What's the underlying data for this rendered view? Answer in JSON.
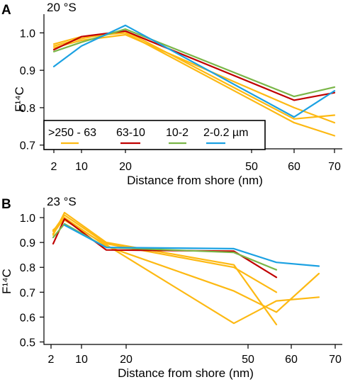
{
  "chart_data": [
    {
      "type": "line",
      "panel": "A",
      "title": "20 °S",
      "xlabel": "Distance from shore (nm)",
      "ylabel": "F¹⁴C",
      "xtick_labels": [
        "2",
        "10",
        "20",
        "50",
        "60",
        "70"
      ],
      "xtick_values": [
        2,
        10,
        20,
        50,
        60,
        70
      ],
      "ytick_labels": [
        "0.7",
        "0.8",
        "0.9",
        "1.0"
      ],
      "ytick_values": [
        0.7,
        0.8,
        0.9,
        1.0
      ],
      "xlim": [
        0,
        70
      ],
      "ylim": [
        0.69,
        1.05
      ],
      "legend": {
        "placement": "bottom-left",
        "entries": [
          {
            "label": ">250 - 63",
            "color": "#FDB913"
          },
          {
            "label": "63-10",
            "color": "#C00000"
          },
          {
            "label": "10-2",
            "color": "#7AB648"
          },
          {
            "label": "2-0.2 µm",
            "color": "#1BA1E2"
          }
        ]
      },
      "series": [
        {
          "size_class": ">250 - 63",
          "color": "#FDB913",
          "x": [
            2,
            10,
            20,
            60,
            70
          ],
          "y": [
            0.97,
            0.99,
            1.0,
            0.76,
            0.725
          ]
        },
        {
          "size_class": ">250 - 63",
          "color": "#FDB913",
          "x": [
            2,
            10,
            20,
            60,
            70
          ],
          "y": [
            0.965,
            0.985,
            1.005,
            0.77,
            0.78
          ]
        },
        {
          "size_class": ">250 - 63",
          "color": "#FDB913",
          "x": [
            2,
            10,
            20,
            60,
            70
          ],
          "y": [
            0.96,
            0.98,
            0.995,
            0.8,
            0.76
          ]
        },
        {
          "size_class": "63-10",
          "color": "#C00000",
          "x": [
            2,
            10,
            20,
            60,
            70
          ],
          "y": [
            0.955,
            0.99,
            1.005,
            0.82,
            0.84
          ]
        },
        {
          "size_class": "10-2",
          "color": "#7AB648",
          "x": [
            2,
            10,
            20,
            60,
            70
          ],
          "y": [
            0.95,
            0.975,
            1.01,
            0.83,
            0.855
          ]
        },
        {
          "size_class": "2-0.2 µm",
          "color": "#1BA1E2",
          "x": [
            2,
            10,
            20,
            60,
            70
          ],
          "y": [
            0.91,
            0.965,
            1.02,
            0.775,
            0.845
          ]
        }
      ]
    },
    {
      "type": "line",
      "panel": "B",
      "title": "23 °S",
      "xlabel": "Distance from shore (nm)",
      "ylabel": "F¹⁴C",
      "xtick_labels": [
        "2",
        "10",
        "20",
        "50",
        "60",
        "70"
      ],
      "xtick_values": [
        2,
        10,
        20,
        50,
        60,
        70
      ],
      "ytick_labels": [
        "0.5",
        "0.6",
        "0.7",
        "0.8",
        "0.9",
        "1.0"
      ],
      "ytick_values": [
        0.5,
        0.6,
        0.7,
        0.8,
        0.9,
        1.0
      ],
      "xlim": [
        0,
        70
      ],
      "ylim": [
        0.49,
        1.04
      ],
      "series": [
        {
          "size_class": ">250 - 63",
          "color": "#FDB913",
          "x": [
            2,
            5,
            15,
            45,
            55
          ],
          "y": [
            0.93,
            1.02,
            0.9,
            0.81,
            0.57
          ]
        },
        {
          "size_class": ">250 - 63",
          "color": "#FDB913",
          "x": [
            2,
            5,
            15,
            45,
            55
          ],
          "y": [
            0.945,
            1.01,
            0.895,
            0.8,
            0.7
          ]
        },
        {
          "size_class": ">250 - 63",
          "color": "#FDB913",
          "x": [
            2,
            5,
            15,
            45,
            55,
            65
          ],
          "y": [
            0.935,
            1.0,
            0.885,
            0.705,
            0.62,
            0.775
          ]
        },
        {
          "size_class": ">250 - 63",
          "color": "#FDB913",
          "x": [
            2,
            5,
            15,
            45,
            55,
            65
          ],
          "y": [
            0.95,
            0.99,
            0.89,
            0.575,
            0.665,
            0.68
          ]
        },
        {
          "size_class": "63-10",
          "color": "#C00000",
          "x": [
            2,
            5,
            15,
            45,
            55
          ],
          "y": [
            0.895,
            0.995,
            0.87,
            0.865,
            0.76
          ]
        },
        {
          "size_class": "10-2",
          "color": "#7AB648",
          "x": [
            2,
            5,
            15,
            45,
            55
          ],
          "y": [
            0.92,
            0.975,
            0.88,
            0.86,
            0.79
          ]
        },
        {
          "size_class": "2-0.2 µm",
          "color": "#1BA1E2",
          "x": [
            5,
            15,
            45,
            55,
            65
          ],
          "y": [
            0.97,
            0.88,
            0.875,
            0.82,
            0.805
          ]
        }
      ]
    }
  ]
}
